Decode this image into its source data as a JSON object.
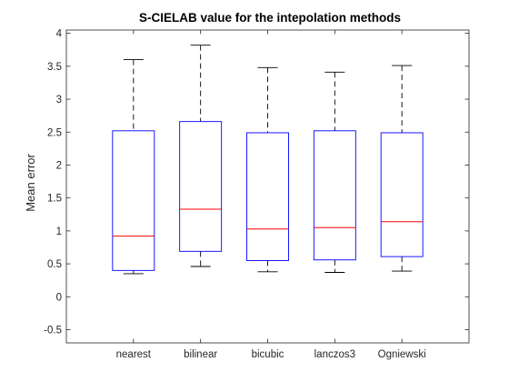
{
  "chart_data": {
    "type": "box",
    "title": "S-CIELAB value for the intepolation methods",
    "xlabel": "",
    "ylabel": "Mean error",
    "ylim": [
      -0.7,
      4.05
    ],
    "yticks": [
      -0.5,
      0,
      0.5,
      1,
      1.5,
      2,
      2.5,
      3,
      3.5,
      4
    ],
    "ytick_labels": [
      "-0.5",
      "0",
      "0.5",
      "1",
      "1.5",
      "2",
      "2.5",
      "3",
      "3.5",
      "4"
    ],
    "categories": [
      "nearest",
      "bilinear",
      "bicubic",
      "lanczos3",
      "Ogniewski"
    ],
    "boxes": [
      {
        "min": 0.35,
        "q1": 0.4,
        "median": 0.92,
        "q3": 2.52,
        "max": 3.6
      },
      {
        "min": 0.46,
        "q1": 0.69,
        "median": 1.33,
        "q3": 2.66,
        "max": 3.82
      },
      {
        "min": 0.38,
        "q1": 0.55,
        "median": 1.03,
        "q3": 2.49,
        "max": 3.48
      },
      {
        "min": 0.37,
        "q1": 0.56,
        "median": 1.05,
        "q3": 2.52,
        "max": 3.41
      },
      {
        "min": 0.39,
        "q1": 0.61,
        "median": 1.14,
        "q3": 2.49,
        "max": 3.51
      }
    ],
    "grid": false,
    "colors": {
      "box": "#0000ff",
      "median": "#ff0000",
      "whisker": "#000000",
      "axis": "#262626"
    }
  }
}
